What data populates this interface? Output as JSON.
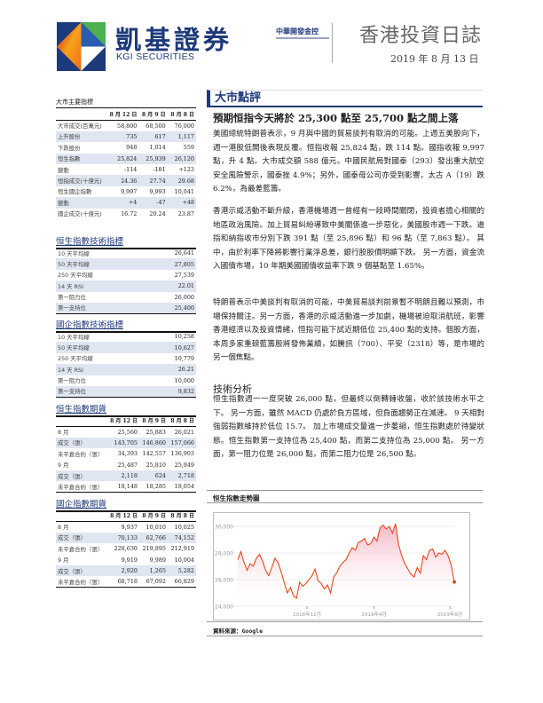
{
  "header": {
    "brand_cn": "凱基證券",
    "brand_en": "KGI SECURITIES",
    "parent_company": "中華開發金控",
    "doc_title": "香港投資日誌",
    "date": "2019 年 8 月 13 日",
    "logo_colors": [
      "#1d3a7a",
      "#4caf50",
      "#f26a1b",
      "#ffffff"
    ]
  },
  "market_indicators": {
    "title": "大市主要指標",
    "columns": [
      "",
      "8 月 12 日",
      "8 月 9 日",
      "8 月 8 日"
    ],
    "rows": [
      [
        "大市成交(百萬元)",
        "58,800",
        "68,500",
        "76,000"
      ],
      [
        "上升股份",
        "735",
        "617",
        "1,117"
      ],
      [
        "下跌股份",
        "948",
        "1,014",
        "559"
      ],
      [
        "恒生指數",
        "25,824",
        "25,939",
        "26,120"
      ],
      [
        "變動",
        "-114",
        "-181",
        "+123"
      ],
      [
        "恒指成交(十億元)",
        "24.36",
        "27.74",
        "29.68"
      ],
      [
        "恒生國企指數",
        "9,997",
        "9,993",
        "10,041"
      ],
      [
        "變動",
        "+4",
        "-47",
        "+48"
      ],
      [
        "國企成交(十億元)",
        "16.72",
        "20.24",
        "23.87"
      ]
    ]
  },
  "hsi_technical": {
    "title": "恒生指數技術指標",
    "rows": [
      [
        "10 天平均線",
        "26,641"
      ],
      [
        "50 天平均線",
        "27,805"
      ],
      [
        "250 天平均線",
        "27,539"
      ],
      [
        "14 天 RSI",
        "22.01"
      ],
      [
        "第一阻力位",
        "26,000"
      ],
      [
        "第一支持位",
        "25,400"
      ]
    ]
  },
  "hscei_technical": {
    "title": "國企指數技術指標",
    "rows": [
      [
        "10 天平均線",
        "10,258"
      ],
      [
        "50 天平均線",
        "10,627"
      ],
      [
        "250 天平均線",
        "10,779"
      ],
      [
        "14 天 RSI",
        "26.21"
      ],
      [
        "第一阻力位",
        "10,000"
      ],
      [
        "第一支持位",
        "9,832"
      ]
    ]
  },
  "hsi_futures": {
    "title": "恒生指數期貨",
    "columns": [
      "",
      "8 月 12 日",
      "8 月 9 日",
      "8 月 8 日"
    ],
    "rows": [
      [
        "8 月",
        "25,560",
        "25,883",
        "26,021"
      ],
      [
        "成交（張）",
        "143,705",
        "146,860",
        "157,066"
      ],
      [
        "未平倉合約（張）",
        "34,393",
        "142,557",
        "136,903"
      ],
      [
        "9 月",
        "25,487",
        "25,810",
        "25,949"
      ],
      [
        "成交（張）",
        "2,118",
        "624",
        "2,718"
      ],
      [
        "未平倉合約（張）",
        "18,148",
        "18,285",
        "18,054"
      ]
    ]
  },
  "hscei_futures": {
    "title": "國企指數期貨",
    "columns": [
      "",
      "8 月 12 日",
      "8 月 9 日",
      "8 月 8 日"
    ],
    "rows": [
      [
        "8 月",
        "9,937",
        "10,010",
        "10,025"
      ],
      [
        "成交（張）",
        "70,133",
        "62,766",
        "74,152"
      ],
      [
        "未平倉合約（張）",
        "228,630",
        "219,895",
        "212,919"
      ],
      [
        "9 月",
        "9,919",
        "9,989",
        "10,004"
      ],
      [
        "成交（張）",
        "2,920",
        "1,265",
        "5,282"
      ],
      [
        "未平倉合約（張）",
        "68,718",
        "67,092",
        "66,829"
      ]
    ]
  },
  "commentary": {
    "section_title": "大市點評",
    "headline": "預期恒指今天將於 25,300 點至 25,700 點之間上落",
    "paragraphs": [
      "美國總統特朗普表示，9 月與中國的貿易談判有取消的可能。上週五美股向下，週一港股低開後表現反覆。恒指收報 25,824 點，跌 114 點。國指收報 9,997 點，升 4 點。大市成交額 588 億元。中國民航局對國泰（293）發出重大航空安全風險警示，國泰挫 4.9%；另外，國泰母公司亦受到影響，太古 A（19）跌 6.2%，為最差藍籌。",
      "香港示威活動不斷升級，香港機場週一曾經有一段時間關閉，投資者擔心相關的地區政治風險。加上貿易糾紛導致中美關係進一步惡化，美國股市週一下跌。道指和納指收市分別下跌 391 點（至 25,896 點）和 96 點（至 7,863 點）。 其中，由於利率下降將影響行業淨息差，銀行股股價明顯下跌。 另一方面，資金流入國債市場，10 年期美國國債收益率下跌 9 個基點至 1.65%。",
      "特朗普表示中美談判有取消的可能，中美貿易談判前景暫不明朗且難以預測，市場保持關注。另一方面，香港的示威活動進一步加劇，機場被迫取消航班，影響香港經濟以及投資情緒，恒指可能下試近期低位 25,400 點的支持。個股方面，本周多家重磅藍籌股將發佈業績，如騰訊（700）、平安（2318）等，是市場的另一個焦點。"
    ],
    "tech_title": "技術分析",
    "tech_paragraph": "恒生指數週一一度突破 26,000 點，但最終以倒轉錘收盤，收於該技術水平之下。 另一方面，雖然 MACD 仍處於負方區域，但負面趨勢正在減速。 9 天相對強弱指數維持於低位 15.7。 加上市場成交量進一步萎縮，恒生指數處於待變狀態。恒生指數第一支持位為 25,400 點，而第二支持位為 25,000 點。 另一方面，第一阻力位是 26,000 點，而第二阻力位是 26,500 點。"
  },
  "chart_data": {
    "type": "area",
    "title": "恒生指數走勢圖",
    "source": "資料來源：Google",
    "y_tick_labels": [
      "30,000",
      "28,000",
      "26,000",
      "24,000"
    ],
    "y_ticks": [
      30000,
      28000,
      26000,
      24000
    ],
    "ylim": [
      24000,
      30800
    ],
    "x_tick_labels": [
      "2018年12月",
      "2019年4月",
      "2019年8月"
    ],
    "x_tick_positions": [
      0.32,
      0.63,
      0.98
    ],
    "grid": true,
    "line_color": "#e8481c",
    "fill_color": "#f2a0b5",
    "values": [
      27500,
      28100,
      27300,
      26700,
      27200,
      27000,
      27600,
      27900,
      27400,
      26700,
      26300,
      26900,
      27600,
      27300,
      26600,
      25800,
      25000,
      25400,
      24800,
      24600,
      25800,
      25500,
      25700,
      26000,
      26300,
      26800,
      25900,
      25700,
      25300,
      25600,
      25000,
      26200,
      26500,
      27000,
      27300,
      27500,
      28000,
      28400,
      28200,
      28800,
      28900,
      29100,
      28600,
      28700,
      29200,
      28900,
      29900,
      30100,
      29800,
      30000,
      29500,
      30200,
      28600,
      27800,
      27200,
      26800,
      26400,
      26200,
      26900,
      26500,
      27800,
      27500,
      28200,
      28300,
      27700,
      28000,
      27900,
      28200,
      27800,
      27100,
      25824
    ]
  }
}
